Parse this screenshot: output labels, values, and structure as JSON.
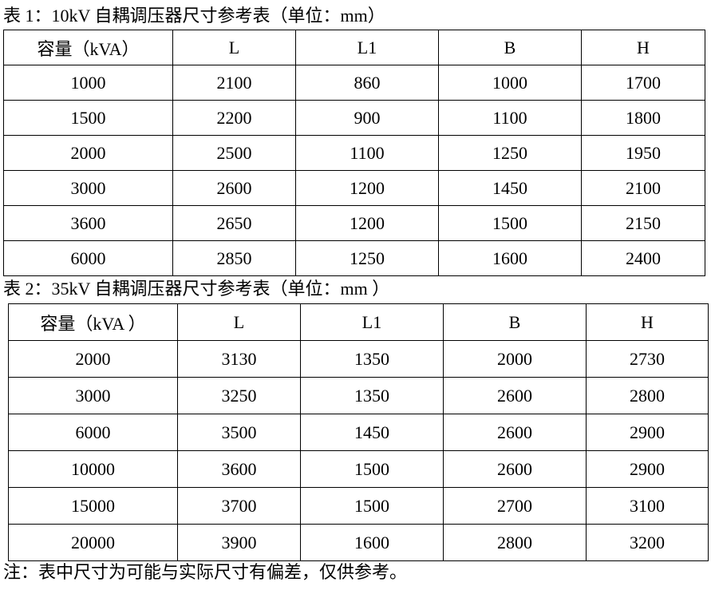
{
  "table1": {
    "title": "表 1：10kV 自耦调压器尺寸参考表（单位：mm）",
    "headers": [
      "容量（kVA）",
      "L",
      "L1",
      "B",
      "H"
    ],
    "rows": [
      [
        "1000",
        "2100",
        "860",
        "1000",
        "1700"
      ],
      [
        "1500",
        "2200",
        "900",
        "1100",
        "1800"
      ],
      [
        "2000",
        "2500",
        "1100",
        "1250",
        "1950"
      ],
      [
        "3000",
        "2600",
        "1200",
        "1450",
        "2100"
      ],
      [
        "3600",
        "2650",
        "1200",
        "1500",
        "2150"
      ],
      [
        "6000",
        "2850",
        "1250",
        "1600",
        "2400"
      ]
    ]
  },
  "table2": {
    "title": "表 2：35kV 自耦调压器尺寸参考表（单位：mm ）",
    "headers": [
      "容量（kVA ）",
      "L",
      "L1",
      "B",
      "H"
    ],
    "rows": [
      [
        "2000",
        "3130",
        "1350",
        "2000",
        "2730"
      ],
      [
        "3000",
        "3250",
        "1350",
        "2600",
        "2800"
      ],
      [
        "6000",
        "3500",
        "1450",
        "2600",
        "2900"
      ],
      [
        "10000",
        "3600",
        "1500",
        "2600",
        "2900"
      ],
      [
        "15000",
        "3700",
        "1500",
        "2700",
        "3100"
      ],
      [
        "20000",
        "3900",
        "1600",
        "2800",
        "3200"
      ]
    ]
  },
  "note": "注：表中尺寸为可能与实际尺寸有偏差，仅供参考。"
}
